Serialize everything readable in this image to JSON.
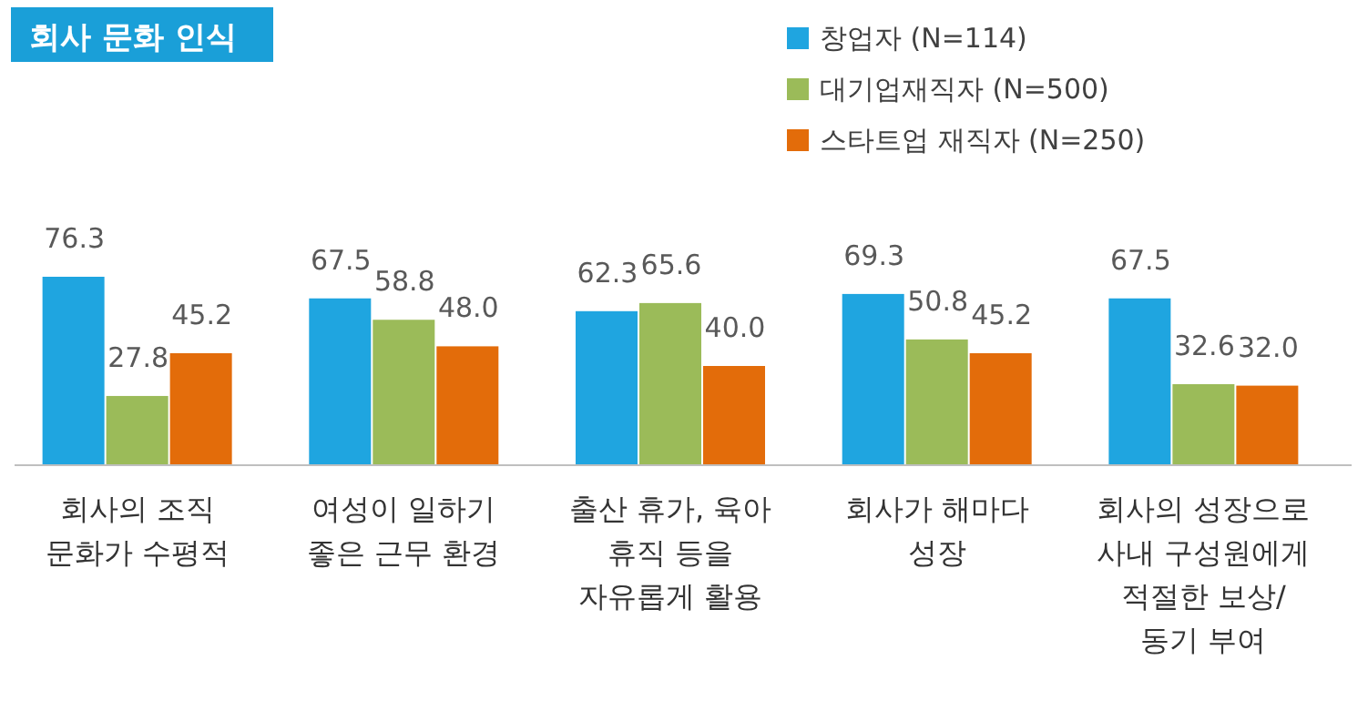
{
  "chart_data": {
    "type": "bar",
    "title": "회사 문화 인식",
    "categories": [
      "회사의 조직\n문화가 수평적",
      "여성이 일하기\n좋은 근무 환경",
      "출산 휴가, 육아\n휴직 등을\n자유롭게 활용",
      "회사가 해마다\n성장",
      "회사의 성장으로\n사내 구성원에게\n적절한 보상/\n동기 부여"
    ],
    "series": [
      {
        "name": "창업자 (N=114)",
        "color": "#1fa5e0",
        "values": [
          76.3,
          67.5,
          62.3,
          69.3,
          67.5
        ],
        "value_labels": [
          "76.3",
          "67.5",
          "62.3",
          "69.3",
          "67.5"
        ]
      },
      {
        "name": "대기업재직자 (N=500)",
        "color": "#9bbb59",
        "values": [
          27.8,
          58.8,
          65.6,
          50.8,
          32.6
        ],
        "value_labels": [
          "27.8",
          "58.8",
          "65.6",
          "50.8",
          "32.6"
        ]
      },
      {
        "name": "스타트업 재직자 (N=250)",
        "color": "#e36c0a",
        "values": [
          45.2,
          48.0,
          40.0,
          45.2,
          32.0
        ],
        "value_labels": [
          "45.2",
          "48.0",
          "40.0",
          "45.2",
          "32.0"
        ]
      }
    ],
    "legend": "top right"
  }
}
